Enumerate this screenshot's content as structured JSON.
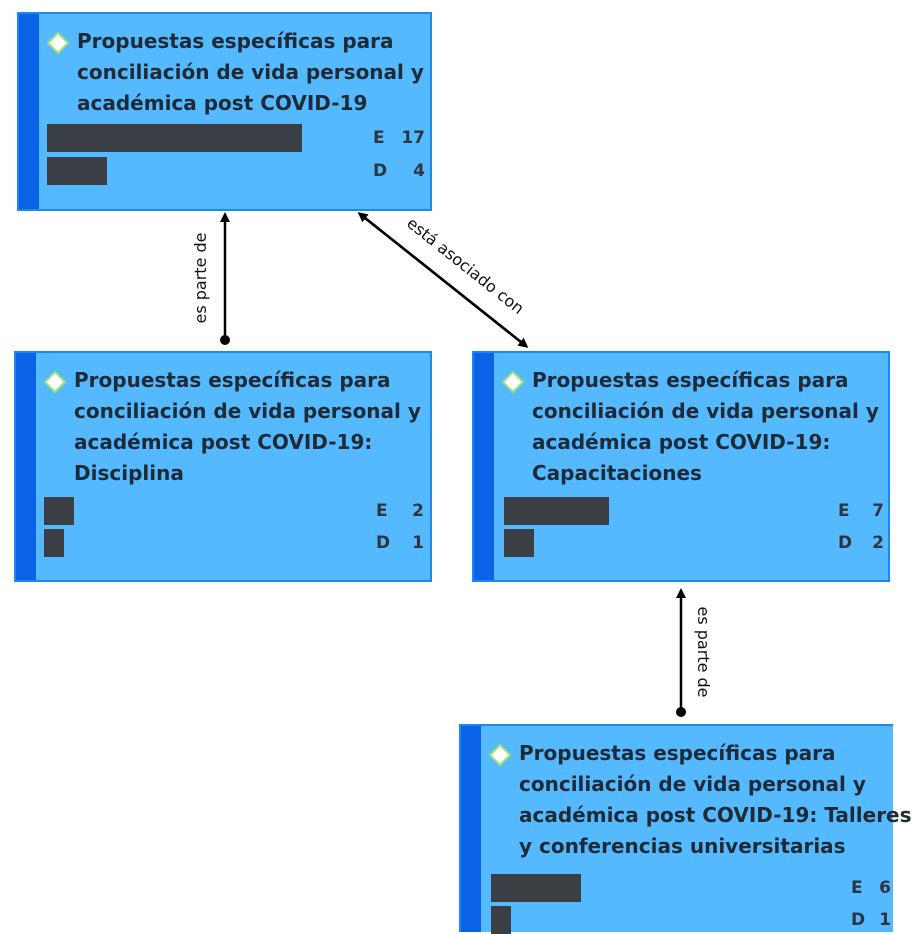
{
  "nodes": [
    {
      "title_lines": [
        "Propuestas específicas para",
        "conciliación de vida personal y",
        "académica post COVID-19"
      ],
      "metrics": [
        {
          "label": "E",
          "value": 17
        },
        {
          "label": "D",
          "value": 4
        }
      ]
    },
    {
      "title_lines": [
        "Propuestas específicas para",
        "conciliación de vida personal y",
        "académica post COVID-19:",
        "Disciplina"
      ],
      "metrics": [
        {
          "label": "E",
          "value": 2
        },
        {
          "label": "D",
          "value": 1
        }
      ]
    },
    {
      "title_lines": [
        "Propuestas específicas para",
        "conciliación de vida personal y",
        "académica post COVID-19:",
        "Capacitaciones"
      ],
      "metrics": [
        {
          "label": "E",
          "value": 7
        },
        {
          "label": "D",
          "value": 2
        }
      ]
    },
    {
      "title_lines": [
        "Propuestas específicas para",
        "conciliación de vida personal y",
        "académica post COVID-19: Talleres",
        "y conferencias universitarias"
      ],
      "metrics": [
        {
          "label": "E",
          "value": 6
        },
        {
          "label": "D",
          "value": 1
        }
      ]
    }
  ],
  "links": [
    {
      "label": "es parte de"
    },
    {
      "label": "está asociado con"
    },
    {
      "label": "es parte de"
    }
  ],
  "colors": {
    "node_fill": "#54b9ff",
    "node_border": "#1f86f2",
    "stripe": "#0a63e6",
    "bar": "#3a3f45",
    "diamond_fill": "#ffffff",
    "diamond_stroke": "#9ae27a"
  },
  "icons": {
    "node_marker": "diamond-icon",
    "arrow": "arrow-head-icon"
  }
}
